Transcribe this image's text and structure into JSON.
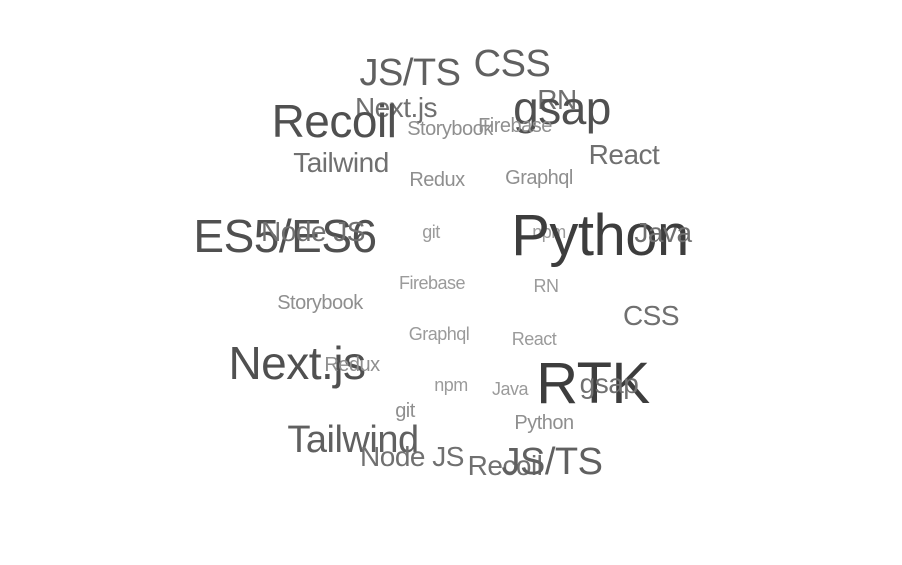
{
  "tags": [
    {
      "text": "JS/TS",
      "level": 3
    },
    {
      "text": "CSS",
      "level": 3
    },
    {
      "text": "RN",
      "level": 2
    },
    {
      "text": "Next.js",
      "level": 2
    },
    {
      "text": "Recoil",
      "level": 4
    },
    {
      "text": "gsap",
      "level": 4
    },
    {
      "text": "Storybook",
      "level": 1
    },
    {
      "text": "Firebase",
      "level": 1
    },
    {
      "text": "React",
      "level": 2
    },
    {
      "text": "Tailwind",
      "level": 2
    },
    {
      "text": "Redux",
      "level": 1
    },
    {
      "text": "Graphql",
      "level": 1
    },
    {
      "text": "ES5/ES6",
      "level": 4
    },
    {
      "text": "Node JS",
      "level": 2
    },
    {
      "text": "git",
      "level": 0
    },
    {
      "text": "npm",
      "level": 0
    },
    {
      "text": "Python",
      "level": 5
    },
    {
      "text": "Java",
      "level": 2
    },
    {
      "text": "Firebase",
      "level": 0
    },
    {
      "text": "RN",
      "level": 0
    },
    {
      "text": "Storybook",
      "level": 1
    },
    {
      "text": "CSS",
      "level": 2
    },
    {
      "text": "Graphql",
      "level": 0
    },
    {
      "text": "React",
      "level": 0
    },
    {
      "text": "Next.js",
      "level": 4
    },
    {
      "text": "Redux",
      "level": 1
    },
    {
      "text": "RTK",
      "level": 5
    },
    {
      "text": "gsap",
      "level": 2
    },
    {
      "text": "npm",
      "level": 0
    },
    {
      "text": "Java",
      "level": 0
    },
    {
      "text": "git",
      "level": 1
    },
    {
      "text": "Python",
      "level": 1
    },
    {
      "text": "Tailwind",
      "level": 3
    },
    {
      "text": "Node JS",
      "level": 2
    },
    {
      "text": "Recoil",
      "level": 2
    },
    {
      "text": "JS/TS",
      "level": 3
    }
  ]
}
